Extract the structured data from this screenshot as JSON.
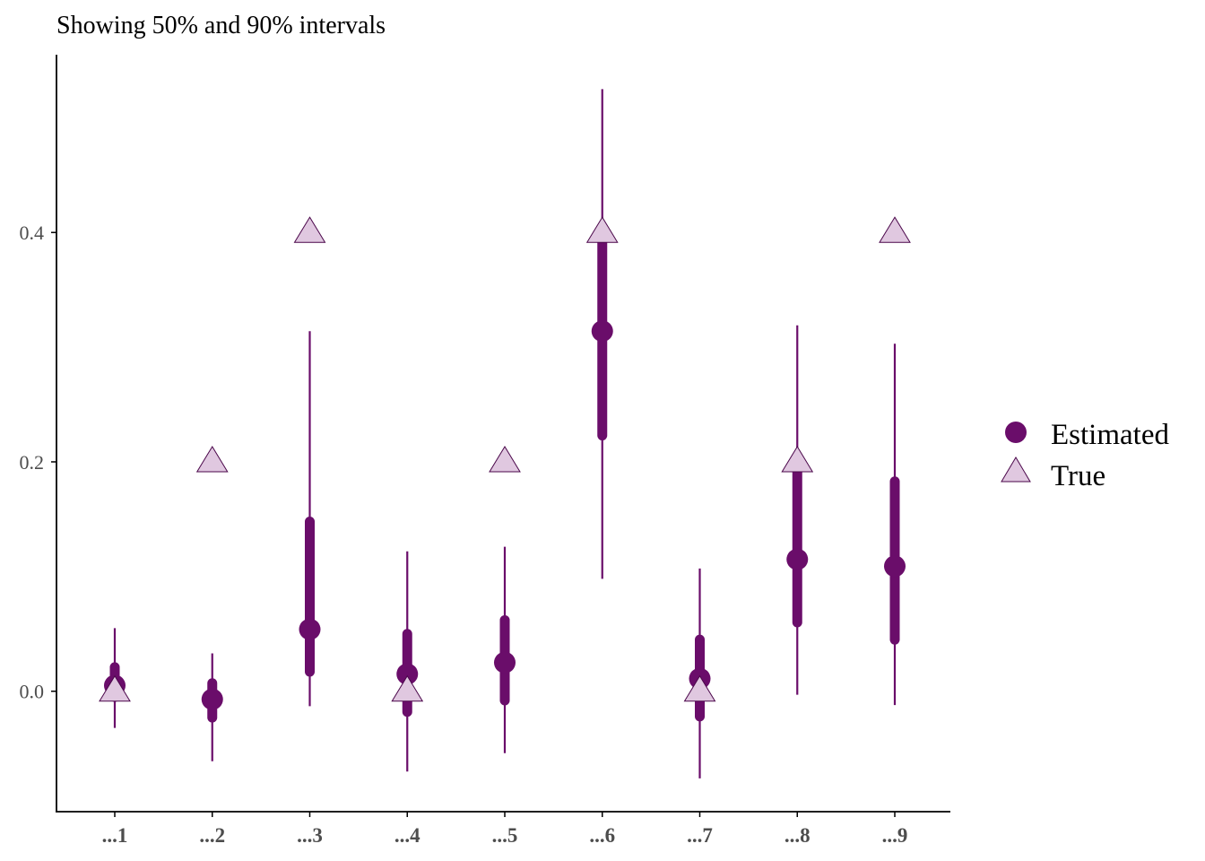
{
  "chart_data": {
    "type": "scatter",
    "title": "Showing 50% and 90% intervals",
    "xlabel": "",
    "ylabel": "",
    "categories": [
      "...1",
      "...2",
      "...3",
      "...4",
      "...5",
      "...6",
      "...7",
      "...8",
      "...9"
    ],
    "ylim": [
      -0.105,
      0.555
    ],
    "yticks": [
      0.0,
      0.2,
      0.4
    ],
    "ytick_labels": [
      "0.0",
      "0.2",
      "0.4"
    ],
    "grid": false,
    "legend_position": "right",
    "series": [
      {
        "name": "Estimated",
        "marker": "circle",
        "color": "#6a0d6a",
        "values": [
          0.005,
          -0.007,
          0.054,
          0.015,
          0.025,
          0.314,
          0.011,
          0.115,
          0.109
        ],
        "interval_50": [
          [
            -0.005,
            0.021
          ],
          [
            -0.023,
            0.007
          ],
          [
            0.017,
            0.148
          ],
          [
            -0.018,
            0.05
          ],
          [
            -0.008,
            0.062
          ],
          [
            0.223,
            0.397
          ],
          [
            -0.022,
            0.045
          ],
          [
            0.06,
            0.199
          ],
          [
            0.045,
            0.183
          ]
        ],
        "interval_90": [
          [
            -0.032,
            0.055
          ],
          [
            -0.061,
            0.033
          ],
          [
            -0.013,
            0.314
          ],
          [
            -0.07,
            0.122
          ],
          [
            -0.054,
            0.126
          ],
          [
            0.098,
            0.525
          ],
          [
            -0.076,
            0.107
          ],
          [
            -0.003,
            0.319
          ],
          [
            -0.012,
            0.303
          ]
        ]
      },
      {
        "name": "True",
        "marker": "triangle",
        "color": "#e0c8e0",
        "values": [
          0.0,
          0.2,
          0.4,
          0.0,
          0.2,
          0.4,
          0.0,
          0.2,
          0.4
        ]
      }
    ]
  },
  "legend": {
    "estimated_label": "Estimated",
    "true_label": "True"
  }
}
